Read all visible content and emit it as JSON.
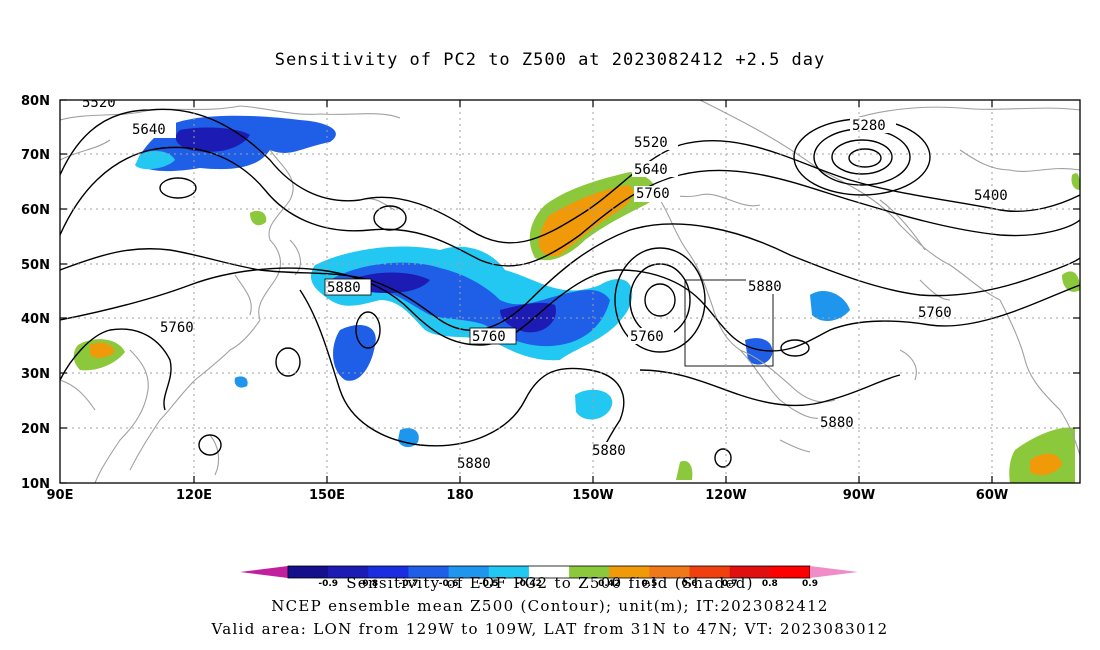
{
  "title": "Sensitivity of PC2 to Z500 at 2023082412 +2.5 day",
  "map": {
    "lat_labels": [
      "80N",
      "70N",
      "60N",
      "50N",
      "40N",
      "30N",
      "20N",
      "10N"
    ],
    "lon_labels": [
      "90E",
      "120E",
      "150E",
      "180",
      "150W",
      "120W",
      "90W",
      "60W"
    ],
    "contour_labels": [
      {
        "text": "5520"
      },
      {
        "text": "5640"
      },
      {
        "text": "5520"
      },
      {
        "text": "5640"
      },
      {
        "text": "5760"
      },
      {
        "text": "5280"
      },
      {
        "text": "5400"
      },
      {
        "text": "5880"
      },
      {
        "text": "5760"
      },
      {
        "text": "5760"
      },
      {
        "text": "5760"
      },
      {
        "text": "5880"
      },
      {
        "text": "5760"
      },
      {
        "text": "5880"
      },
      {
        "text": "5880"
      },
      {
        "text": "5880"
      }
    ],
    "colors": {
      "coast": "#a0a0a0",
      "contour": "#000000",
      "grid": "#a0a0a0"
    }
  },
  "colorbar": {
    "labels": [
      "-0.9",
      "-0.8",
      "-0.7",
      "-0.6",
      "-0.5",
      "-0.42",
      "0.42",
      "0.5",
      "0.6",
      "0.7",
      "0.8",
      "0.9"
    ],
    "colors": [
      "#c21fa0",
      "#150f8c",
      "#1c1cb4",
      "#1a2de0",
      "#1f5fe8",
      "#1f96ee",
      "#23c8f2",
      "#ffffff",
      "#8cc83c",
      "#f09a0a",
      "#f07818",
      "#f04010",
      "#e01010",
      "#ff0000",
      "#f08cc8"
    ]
  },
  "captions": {
    "line1": "Sensitivity of EOF PC2 to Z500 field (Shaded)",
    "line2": "NCEP ensemble mean Z500 (Contour); unit(m); IT:2023082412",
    "line3": "Valid area: LON from 129W to 109W, LAT from 31N to 47N; VT: 2023083012"
  }
}
